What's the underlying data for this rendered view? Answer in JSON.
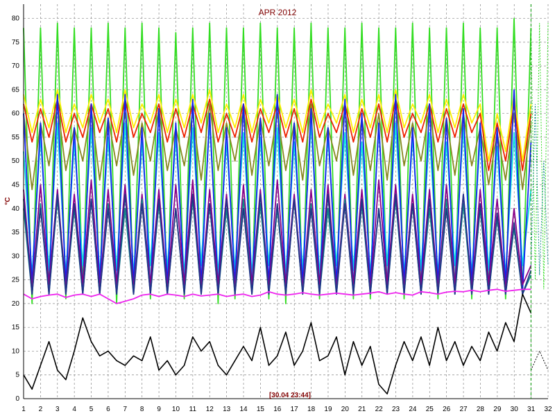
{
  "chart_data": {
    "type": "line",
    "title": "APR 2012",
    "ylabel": "°C",
    "timestamp": "[30.04 23:44]",
    "xlim": [
      1,
      32
    ],
    "ylim": [
      0,
      83
    ],
    "grid": true,
    "x_ticks": [
      1,
      2,
      3,
      4,
      5,
      6,
      7,
      8,
      9,
      10,
      11,
      12,
      13,
      14,
      15,
      16,
      17,
      18,
      19,
      20,
      21,
      22,
      23,
      24,
      25,
      26,
      27,
      28,
      29,
      30,
      31,
      32
    ],
    "y_ticks": [
      0,
      5,
      10,
      15,
      20,
      25,
      30,
      35,
      40,
      45,
      50,
      55,
      60,
      65,
      70,
      75,
      80
    ],
    "current_time_marker_x": 30.99,
    "colors": {
      "green": "#33dd22",
      "red": "#ee2200",
      "yellow": "#ffee00",
      "blue": "#1122ee",
      "olive": "#888822",
      "cyan": "#11dddd",
      "purple": "#880088",
      "teal": "#118888",
      "navy": "#223388",
      "magenta": "#ee22ee",
      "black": "#000000",
      "marker": "#009900",
      "title": "#800000"
    },
    "series": [
      {
        "color_key": "green",
        "values": [
          78,
          20,
          78,
          22,
          79,
          21,
          78,
          23,
          78,
          22,
          79,
          20,
          78,
          22,
          79,
          21,
          78,
          22,
          77,
          21,
          78,
          22,
          79,
          20,
          78,
          21,
          78,
          22,
          79,
          21,
          78,
          20,
          78,
          22,
          79,
          21,
          78,
          22,
          78,
          21,
          79,
          21,
          78,
          22,
          78,
          21,
          79,
          22,
          78,
          21,
          78,
          22,
          79,
          21,
          78,
          22,
          78,
          21,
          80,
          22,
          78
        ]
      },
      {
        "color_key": "yellow",
        "values": [
          64,
          56,
          63,
          57,
          65,
          56,
          62,
          57,
          64,
          58,
          63,
          56,
          65,
          57,
          62,
          58,
          64,
          56,
          63,
          57,
          64,
          58,
          65,
          56,
          62,
          57,
          64,
          56,
          63,
          58,
          64,
          57,
          63,
          56,
          65,
          57,
          62,
          58,
          64,
          56,
          63,
          57,
          64,
          56,
          65,
          57,
          62,
          58,
          64,
          56,
          63,
          57,
          64,
          58,
          62,
          50,
          60,
          52,
          64,
          50,
          62
        ]
      },
      {
        "color_key": "red",
        "values": [
          62,
          54,
          61,
          55,
          63,
          54,
          60,
          55,
          62,
          56,
          61,
          54,
          63,
          55,
          60,
          56,
          62,
          54,
          61,
          55,
          62,
          56,
          63,
          54,
          60,
          55,
          62,
          54,
          61,
          56,
          62,
          55,
          61,
          54,
          63,
          55,
          60,
          56,
          62,
          54,
          61,
          55,
          62,
          54,
          63,
          55,
          60,
          56,
          62,
          54,
          61,
          55,
          62,
          56,
          60,
          48,
          58,
          50,
          62,
          48,
          60
        ]
      },
      {
        "color_key": "olive",
        "values": [
          60,
          44,
          58,
          49,
          62,
          48,
          57,
          50,
          61,
          46,
          59,
          49,
          60,
          47,
          58,
          50,
          61,
          48,
          57,
          49,
          60,
          46,
          62,
          48,
          58,
          50,
          61,
          47,
          59,
          49,
          60,
          48,
          58,
          46,
          62,
          49,
          57,
          50,
          61,
          47,
          59,
          48,
          60,
          46,
          62,
          49,
          58,
          50,
          61,
          48,
          59,
          47,
          60,
          49,
          57,
          45,
          56,
          46,
          60,
          44,
          58
        ]
      },
      {
        "color_key": "cyan",
        "values": [
          52,
          26,
          55,
          27,
          58,
          26,
          54,
          28,
          57,
          26,
          55,
          27,
          58,
          26,
          54,
          28,
          56,
          27,
          55,
          26,
          57,
          28,
          58,
          26,
          54,
          27,
          56,
          26,
          55,
          28,
          57,
          26,
          54,
          27,
          58,
          26,
          55,
          28,
          56,
          27,
          54,
          26,
          57,
          28,
          58,
          26,
          55,
          27,
          56,
          26,
          54,
          28,
          57,
          26,
          55,
          27,
          53,
          26,
          56,
          28,
          44
        ]
      },
      {
        "color_key": "blue",
        "values": [
          60,
          24,
          58,
          23,
          64,
          24,
          57,
          23,
          62,
          24,
          59,
          23,
          64,
          24,
          57,
          23,
          61,
          24,
          58,
          23,
          63,
          24,
          60,
          23,
          57,
          24,
          62,
          23,
          59,
          24,
          64,
          23,
          58,
          24,
          61,
          23,
          57,
          24,
          63,
          23,
          60,
          24,
          58,
          23,
          64,
          24,
          57,
          23,
          62,
          24,
          59,
          23,
          61,
          24,
          58,
          23,
          57,
          24,
          65,
          23,
          54
        ]
      },
      {
        "color_key": "purple",
        "values": [
          44,
          23,
          45,
          24,
          44,
          23,
          43,
          24,
          46,
          23,
          44,
          24,
          45,
          23,
          43,
          24,
          44,
          23,
          45,
          24,
          46,
          23,
          44,
          24,
          43,
          23,
          45,
          24,
          44,
          23,
          46,
          24,
          43,
          23,
          44,
          24,
          45,
          23,
          43,
          24,
          44,
          23,
          46,
          24,
          45,
          23,
          43,
          24,
          44,
          23,
          45,
          24,
          43,
          23,
          44,
          24,
          42,
          23,
          40,
          24,
          28
        ]
      },
      {
        "color_key": "teal",
        "values": [
          40,
          22,
          41,
          22,
          42,
          22,
          40,
          22,
          42,
          22,
          41,
          22,
          40,
          22,
          42,
          22,
          41,
          22,
          40,
          22,
          42,
          22,
          41,
          22,
          40,
          22,
          42,
          22,
          41,
          22,
          40,
          22,
          42,
          22,
          41,
          22,
          40,
          22,
          42,
          22,
          41,
          22,
          40,
          22,
          42,
          22,
          41,
          22,
          40,
          22,
          42,
          22,
          41,
          22,
          40,
          22,
          38,
          22,
          36,
          22,
          26
        ]
      },
      {
        "color_key": "navy",
        "values": [
          42,
          22,
          40,
          22,
          43,
          22,
          41,
          22,
          42,
          22,
          40,
          22,
          43,
          22,
          41,
          22,
          42,
          22,
          40,
          22,
          43,
          22,
          41,
          22,
          42,
          22,
          40,
          22,
          43,
          22,
          41,
          22,
          42,
          22,
          40,
          22,
          43,
          22,
          41,
          22,
          42,
          22,
          40,
          22,
          43,
          22,
          41,
          22,
          42,
          22,
          40,
          22,
          43,
          22,
          41,
          22,
          39,
          22,
          37,
          22,
          27
        ]
      },
      {
        "color_key": "magenta",
        "values": [
          22,
          21,
          21.5,
          21.8,
          22,
          21.3,
          21.8,
          22,
          21.5,
          22,
          21,
          20,
          20.5,
          21,
          21.8,
          22,
          21.5,
          22,
          21.8,
          21.5,
          22,
          21.6,
          21.8,
          22,
          21.5,
          21.8,
          22,
          21.5,
          21.8,
          22.5,
          22,
          21.8,
          22,
          22.3,
          22,
          21.8,
          22,
          22.2,
          22,
          21.8,
          22,
          22.2,
          22.5,
          22,
          22.3,
          22,
          21.8,
          22.5,
          22.3,
          22,
          22.4,
          22.6,
          22.5,
          22.8,
          22.5,
          22.8,
          23,
          22.6,
          22.8,
          23,
          23
        ]
      },
      {
        "color_key": "black",
        "values": [
          5,
          2,
          7,
          12,
          6,
          4,
          10,
          17,
          12,
          9,
          10,
          8,
          7,
          9,
          8,
          13,
          6,
          8,
          5,
          7,
          13,
          10,
          12,
          7,
          5,
          8,
          11,
          8,
          15,
          7,
          9,
          14,
          7,
          10,
          16,
          8,
          9,
          13,
          5,
          12,
          7,
          11,
          3,
          1,
          7,
          12,
          8,
          13,
          7,
          15,
          8,
          12,
          7,
          11,
          8,
          14,
          10,
          16,
          12,
          22,
          18
        ]
      }
    ],
    "projection_after_marker": [
      {
        "color_key": "green",
        "values": [
          78,
          25,
          79,
          23,
          79
        ]
      },
      {
        "color_key": "teal",
        "values": [
          28,
          62,
          26,
          50,
          28
        ]
      },
      {
        "color_key": "black",
        "values": [
          6,
          10,
          6
        ]
      }
    ]
  }
}
